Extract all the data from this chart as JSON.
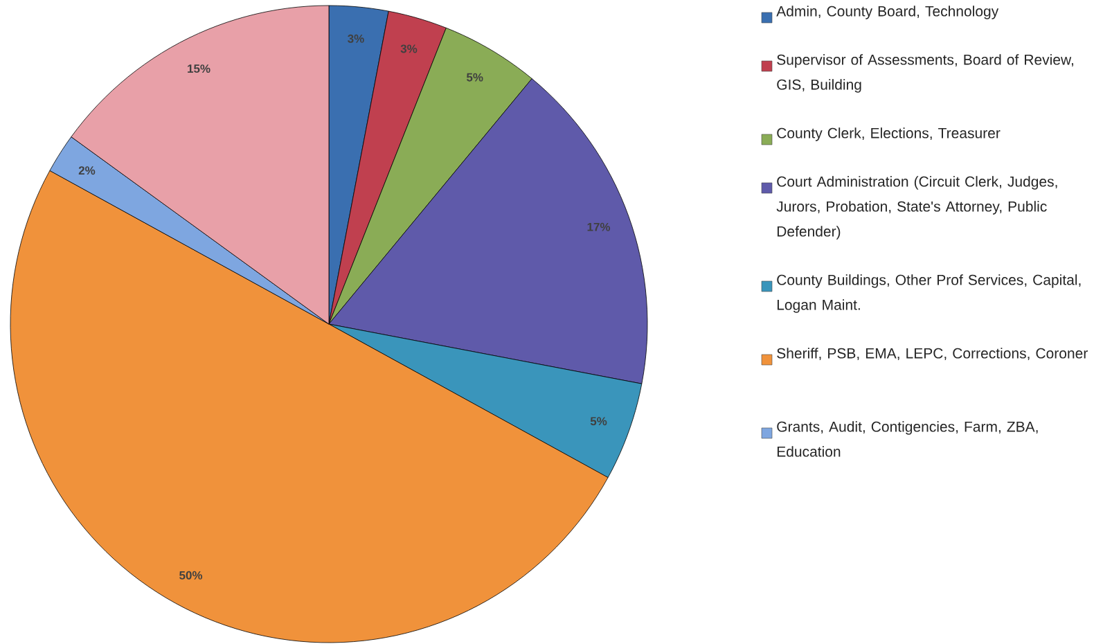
{
  "chart_data": {
    "type": "pie",
    "categories": [
      "Admin, County Board, Technology",
      "Supervisor of Assessments, Board of Review, GIS, Building",
      "County Clerk, Elections, Treasurer",
      "Court Administration (Circuit Clerk, Judges, Jurors, Probation, State's Attorney, Public Defender)",
      "County Buildings, Other Prof Services, Capital, Logan Maint.",
      "Sheriff, PSB, EMA, LEPC, Corrections, Coroner",
      "Grants, Audit, Contigencies, Farm, ZBA, Education",
      null
    ],
    "values": [
      3,
      3,
      5,
      17,
      5,
      50,
      2,
      15
    ],
    "colors": [
      "#3a6fb0",
      "#c0404f",
      "#8aac56",
      "#5f5aaa",
      "#3a95bb",
      "#f0923b",
      "#7ea6e0",
      "#e8a0a8"
    ],
    "value_labels": [
      "3%",
      "3%",
      "5%",
      "17%",
      "5%",
      "50%",
      "2%",
      "15%"
    ],
    "legend": "right"
  }
}
